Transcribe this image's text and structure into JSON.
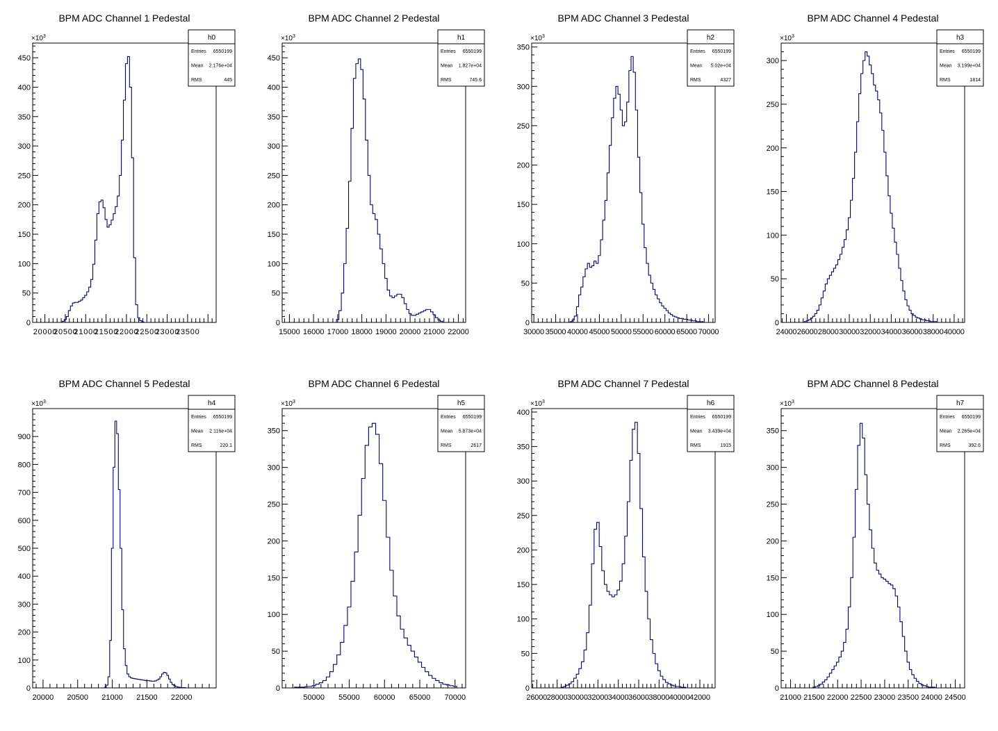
{
  "panel_meta": [
    {
      "hist": "h0",
      "exponent": "×10",
      "exponent_sup": "3",
      "stats": [
        {
          "label": "Entries",
          "value": "6550199"
        },
        {
          "label": "Mean",
          "value": "2.176e+04"
        },
        {
          "label": "RMS",
          "value": "445"
        }
      ]
    },
    {
      "hist": "h1",
      "exponent": "×10",
      "exponent_sup": "3",
      "stats": [
        {
          "label": "Entries",
          "value": "6550199"
        },
        {
          "label": "Mean",
          "value": "1.827e+04"
        },
        {
          "label": "RMS",
          "value": "745.6"
        }
      ]
    },
    {
      "hist": "h2",
      "exponent": "×10",
      "exponent_sup": "3",
      "stats": [
        {
          "label": "Entries",
          "value": "6550199"
        },
        {
          "label": "Mean",
          "value": "5.02e+04"
        },
        {
          "label": "RMS",
          "value": "4327"
        }
      ]
    },
    {
      "hist": "h3",
      "exponent": "×10",
      "exponent_sup": "3",
      "stats": [
        {
          "label": "Entries",
          "value": "6550199"
        },
        {
          "label": "Mean",
          "value": "3.199e+04"
        },
        {
          "label": "RMS",
          "value": "1814"
        }
      ]
    },
    {
      "hist": "h4",
      "exponent": "×10",
      "exponent_sup": "3",
      "stats": [
        {
          "label": "Entries",
          "value": "6550199"
        },
        {
          "label": "Mean",
          "value": "2.116e+04"
        },
        {
          "label": "RMS",
          "value": "220.1"
        }
      ]
    },
    {
      "hist": "h5",
      "exponent": "×10",
      "exponent_sup": "3",
      "stats": [
        {
          "label": "Entries",
          "value": "6550199"
        },
        {
          "label": "Mean",
          "value": "5.873e+04"
        },
        {
          "label": "RMS",
          "value": "2617"
        }
      ]
    },
    {
      "hist": "h6",
      "exponent": "×10",
      "exponent_sup": "3",
      "stats": [
        {
          "label": "Entries",
          "value": "6550199"
        },
        {
          "label": "Mean",
          "value": "3.439e+04"
        },
        {
          "label": "RMS",
          "value": "1915"
        }
      ]
    },
    {
      "hist": "h7",
      "exponent": "×10",
      "exponent_sup": "3",
      "stats": [
        {
          "label": "Entries",
          "value": "6550199"
        },
        {
          "label": "Mean",
          "value": "2.265e+04"
        },
        {
          "label": "RMS",
          "value": "392.6"
        }
      ]
    }
  ],
  "colors": {
    "line": "#000080",
    "axis": "#000000",
    "background": "#ffffff"
  },
  "chart_data": [
    {
      "type": "step-histogram",
      "title": "BPM ADC Channel 1 Pedestal",
      "xlim": [
        19700,
        24200
      ],
      "ylim": [
        0,
        475
      ],
      "xticks": [
        20000,
        20500,
        21000,
        21500,
        22000,
        22500,
        23000,
        23500
      ],
      "yticks": [
        0,
        50,
        100,
        150,
        200,
        250,
        300,
        350,
        400,
        450
      ],
      "tick_labels_joined": true,
      "grid": false,
      "x": [
        20450,
        20500,
        20550,
        20600,
        20650,
        20700,
        20750,
        20800,
        20850,
        20900,
        20950,
        21000,
        21050,
        21100,
        21150,
        21200,
        21250,
        21300,
        21350,
        21400,
        21450,
        21500,
        21550,
        21600,
        21650,
        21700,
        21750,
        21800,
        21850,
        21900,
        21950,
        22000,
        22050,
        22100,
        22150,
        22200,
        22250,
        22300,
        22350,
        22400,
        22450,
        22500
      ],
      "y": [
        2,
        5,
        10,
        20,
        28,
        33,
        34,
        34,
        36,
        38,
        42,
        46,
        52,
        60,
        73,
        99,
        140,
        185,
        205,
        208,
        195,
        175,
        162,
        166,
        174,
        185,
        197,
        215,
        250,
        310,
        378,
        440,
        452,
        400,
        280,
        110,
        30,
        8,
        3,
        1,
        0,
        0
      ]
    },
    {
      "type": "step-histogram",
      "title": "BPM ADC Channel 2 Pedestal",
      "xlim": [
        14700,
        22300
      ],
      "ylim": [
        0,
        475
      ],
      "xticks": [
        15000,
        16000,
        17000,
        18000,
        19000,
        20000,
        21000,
        22000
      ],
      "yticks": [
        0,
        50,
        100,
        150,
        200,
        250,
        300,
        350,
        400,
        450
      ],
      "tick_labels_joined": false,
      "grid": false,
      "x": [
        17000,
        17100,
        17200,
        17300,
        17400,
        17500,
        17600,
        17700,
        17800,
        17900,
        18000,
        18100,
        18200,
        18300,
        18400,
        18500,
        18600,
        18700,
        18800,
        18900,
        19000,
        19100,
        19200,
        19300,
        19400,
        19500,
        19600,
        19700,
        19800,
        19900,
        20000,
        20100,
        20200,
        20300,
        20400,
        20500,
        20600,
        20700,
        20800,
        20900,
        21000,
        21100,
        21200,
        21300,
        21400
      ],
      "y": [
        5,
        20,
        50,
        100,
        160,
        240,
        330,
        415,
        440,
        448,
        430,
        380,
        310,
        250,
        200,
        185,
        175,
        150,
        125,
        100,
        75,
        55,
        45,
        42,
        45,
        48,
        48,
        42,
        32,
        22,
        15,
        12,
        12,
        14,
        16,
        18,
        20,
        22,
        22,
        18,
        13,
        8,
        4,
        2,
        0
      ]
    },
    {
      "type": "step-histogram",
      "title": "BPM ADC Channel 3 Pedestal",
      "xlim": [
        29500,
        71500
      ],
      "ylim": [
        0,
        355
      ],
      "xticks": [
        30000,
        35000,
        40000,
        45000,
        50000,
        55000,
        60000,
        65000,
        70000
      ],
      "yticks": [
        0,
        50,
        100,
        150,
        200,
        250,
        300,
        350
      ],
      "tick_labels_joined": true,
      "grid": false,
      "x": [
        38500,
        39000,
        39500,
        40000,
        40500,
        41000,
        41500,
        42000,
        42500,
        43000,
        43500,
        44000,
        44500,
        45000,
        45500,
        46000,
        46500,
        47000,
        47500,
        48000,
        48500,
        49000,
        49500,
        50000,
        50500,
        51000,
        51500,
        52000,
        52500,
        53000,
        53500,
        54000,
        54500,
        55000,
        55500,
        56000,
        56500,
        57000,
        57500,
        58000,
        58500,
        59000,
        59500,
        60000,
        60500,
        61000,
        61500,
        62000,
        62500,
        63000,
        63500,
        64000,
        64500,
        65000,
        65500,
        66000,
        66500,
        67000,
        67500,
        68000,
        68500,
        69000
      ],
      "y": [
        1,
        3,
        8,
        20,
        35,
        45,
        58,
        68,
        75,
        70,
        72,
        78,
        75,
        85,
        105,
        130,
        155,
        190,
        225,
        260,
        285,
        300,
        290,
        270,
        250,
        255,
        280,
        320,
        338,
        318,
        270,
        210,
        165,
        125,
        95,
        75,
        60,
        50,
        42,
        35,
        30,
        25,
        21,
        18,
        15,
        12,
        10,
        8,
        7,
        6,
        5,
        5,
        4,
        4,
        3,
        3,
        2,
        2,
        1,
        1,
        1,
        0
      ]
    },
    {
      "type": "step-histogram",
      "title": "BPM ADC Channel 4 Pedestal",
      "xlim": [
        23500,
        41000
      ],
      "ylim": [
        0,
        320
      ],
      "xticks": [
        24000,
        26000,
        28000,
        30000,
        32000,
        34000,
        36000,
        38000,
        40000
      ],
      "yticks": [
        0,
        50,
        100,
        150,
        200,
        250,
        300
      ],
      "tick_labels_joined": true,
      "grid": false,
      "x": [
        25800,
        26000,
        26200,
        26400,
        26600,
        26800,
        27000,
        27200,
        27400,
        27600,
        27800,
        28000,
        28200,
        28400,
        28600,
        28800,
        29000,
        29200,
        29400,
        29600,
        29800,
        30000,
        30200,
        30400,
        30600,
        30800,
        31000,
        31200,
        31400,
        31600,
        31800,
        32000,
        32200,
        32400,
        32600,
        32800,
        33000,
        33200,
        33400,
        33600,
        33800,
        34000,
        34200,
        34400,
        34600,
        34800,
        35000,
        35200,
        35400,
        35600,
        35800,
        36000,
        36200,
        36400,
        36600,
        36800,
        37000,
        37200,
        37400,
        37600,
        37800,
        38000,
        38200,
        38400
      ],
      "y": [
        1,
        2,
        3,
        5,
        7,
        10,
        14,
        20,
        28,
        36,
        44,
        50,
        54,
        58,
        62,
        66,
        72,
        78,
        86,
        95,
        106,
        120,
        140,
        165,
        195,
        230,
        262,
        285,
        300,
        310,
        305,
        295,
        285,
        272,
        265,
        255,
        240,
        220,
        195,
        168,
        145,
        125,
        108,
        92,
        78,
        62,
        48,
        36,
        26,
        19,
        14,
        10,
        8,
        6,
        5,
        4,
        3,
        3,
        2,
        2,
        1,
        1,
        1,
        0
      ]
    },
    {
      "type": "step-histogram",
      "title": "BPM ADC Channel 5 Pedestal",
      "xlim": [
        19850,
        22500
      ],
      "ylim": [
        0,
        1000
      ],
      "xticks": [
        20000,
        20500,
        21000,
        21500,
        22000
      ],
      "yticks": [
        0,
        100,
        200,
        300,
        400,
        500,
        600,
        700,
        800,
        900
      ],
      "tick_labels_joined": false,
      "grid": false,
      "x": [
        20900,
        20925,
        20950,
        20975,
        21000,
        21025,
        21050,
        21075,
        21100,
        21125,
        21150,
        21175,
        21200,
        21225,
        21250,
        21275,
        21300,
        21325,
        21350,
        21375,
        21400,
        21425,
        21450,
        21475,
        21500,
        21525,
        21550,
        21575,
        21600,
        21625,
        21650,
        21675,
        21700,
        21725,
        21750,
        21775,
        21800,
        21825,
        21850,
        21875,
        21900,
        21925,
        21950,
        21975,
        22000,
        22025,
        22050,
        22075
      ],
      "y": [
        2,
        10,
        40,
        170,
        500,
        790,
        955,
        910,
        710,
        500,
        280,
        140,
        80,
        50,
        40,
        36,
        34,
        33,
        32,
        31,
        30,
        29,
        28,
        27,
        26,
        26,
        25,
        24,
        24,
        25,
        28,
        32,
        40,
        50,
        56,
        54,
        45,
        32,
        20,
        12,
        8,
        5,
        3,
        2,
        1,
        1,
        1,
        0
      ]
    },
    {
      "type": "step-histogram",
      "title": "BPM ADC Channel 6 Pedestal",
      "xlim": [
        45500,
        71500
      ],
      "ylim": [
        0,
        380
      ],
      "xticks": [
        50000,
        55000,
        60000,
        65000,
        70000
      ],
      "yticks": [
        0,
        50,
        100,
        150,
        200,
        250,
        300,
        350
      ],
      "tick_labels_joined": false,
      "grid": false,
      "x": [
        47500,
        48000,
        48500,
        49000,
        49500,
        50000,
        50500,
        51000,
        51500,
        52000,
        52500,
        53000,
        53500,
        54000,
        54500,
        55000,
        55500,
        56000,
        56500,
        57000,
        57500,
        58000,
        58500,
        59000,
        59500,
        60000,
        60500,
        61000,
        61500,
        62000,
        62500,
        63000,
        63500,
        64000,
        64500,
        65000,
        65500,
        66000,
        66500,
        67000,
        67500,
        68000,
        68500,
        69000,
        69500,
        70000,
        70500
      ],
      "y": [
        1,
        1,
        1,
        2,
        2,
        3,
        5,
        7,
        10,
        15,
        22,
        32,
        45,
        62,
        85,
        110,
        145,
        185,
        235,
        285,
        330,
        355,
        360,
        345,
        305,
        255,
        205,
        160,
        125,
        98,
        80,
        68,
        58,
        50,
        42,
        35,
        28,
        22,
        17,
        13,
        10,
        7,
        5,
        4,
        3,
        2,
        0
      ]
    },
    {
      "type": "step-histogram",
      "title": "BPM ADC Channel 7 Pedestal",
      "xlim": [
        25500,
        43500
      ],
      "ylim": [
        0,
        405
      ],
      "xticks": [
        26000,
        28000,
        30000,
        32000,
        34000,
        36000,
        38000,
        40000,
        42000
      ],
      "yticks": [
        0,
        50,
        100,
        150,
        200,
        250,
        300,
        350,
        400
      ],
      "tick_labels_joined": true,
      "grid": false,
      "x": [
        28500,
        28750,
        29000,
        29250,
        29500,
        29750,
        30000,
        30250,
        30500,
        30750,
        31000,
        31250,
        31500,
        31750,
        32000,
        32250,
        32500,
        32750,
        33000,
        33250,
        33500,
        33750,
        34000,
        34250,
        34500,
        34750,
        35000,
        35250,
        35500,
        35750,
        36000,
        36250,
        36500,
        36750,
        37000,
        37250,
        37500,
        37750,
        38000,
        38250,
        38500,
        38750,
        39000,
        39250,
        39500,
        39750,
        40000,
        40250,
        40500,
        40750
      ],
      "y": [
        1,
        2,
        4,
        6,
        9,
        14,
        20,
        28,
        38,
        55,
        80,
        120,
        180,
        230,
        240,
        205,
        170,
        150,
        140,
        135,
        132,
        135,
        142,
        155,
        180,
        220,
        270,
        330,
        375,
        385,
        340,
        260,
        190,
        140,
        100,
        70,
        50,
        35,
        25,
        17,
        12,
        8,
        6,
        4,
        3,
        2,
        2,
        1,
        1,
        0
      ]
    },
    {
      "type": "step-histogram",
      "title": "BPM ADC Channel 8 Pedestal",
      "xlim": [
        20800,
        24700
      ],
      "ylim": [
        0,
        380
      ],
      "xticks": [
        21000,
        21500,
        22000,
        22500,
        23000,
        23500,
        24000,
        24500
      ],
      "yticks": [
        0,
        50,
        100,
        150,
        200,
        250,
        300,
        350
      ],
      "tick_labels_joined": false,
      "grid": false,
      "x": [
        21500,
        21550,
        21600,
        21650,
        21700,
        21750,
        21800,
        21850,
        21900,
        21950,
        22000,
        22050,
        22100,
        22150,
        22200,
        22250,
        22300,
        22350,
        22400,
        22450,
        22500,
        22550,
        22600,
        22650,
        22700,
        22750,
        22800,
        22850,
        22900,
        22950,
        23000,
        23050,
        23100,
        23150,
        23200,
        23250,
        23300,
        23350,
        23400,
        23450,
        23500,
        23550,
        23600,
        23650,
        23700,
        23750,
        23800,
        23850,
        23900,
        23950,
        24000,
        24050,
        24100
      ],
      "y": [
        1,
        2,
        3,
        5,
        8,
        11,
        15,
        20,
        25,
        30,
        35,
        42,
        50,
        62,
        80,
        110,
        150,
        205,
        270,
        330,
        360,
        340,
        290,
        250,
        215,
        190,
        170,
        160,
        155,
        150,
        148,
        145,
        142,
        140,
        135,
        125,
        110,
        90,
        70,
        50,
        35,
        25,
        18,
        13,
        9,
        6,
        4,
        3,
        2,
        1,
        1,
        1,
        0
      ]
    }
  ]
}
